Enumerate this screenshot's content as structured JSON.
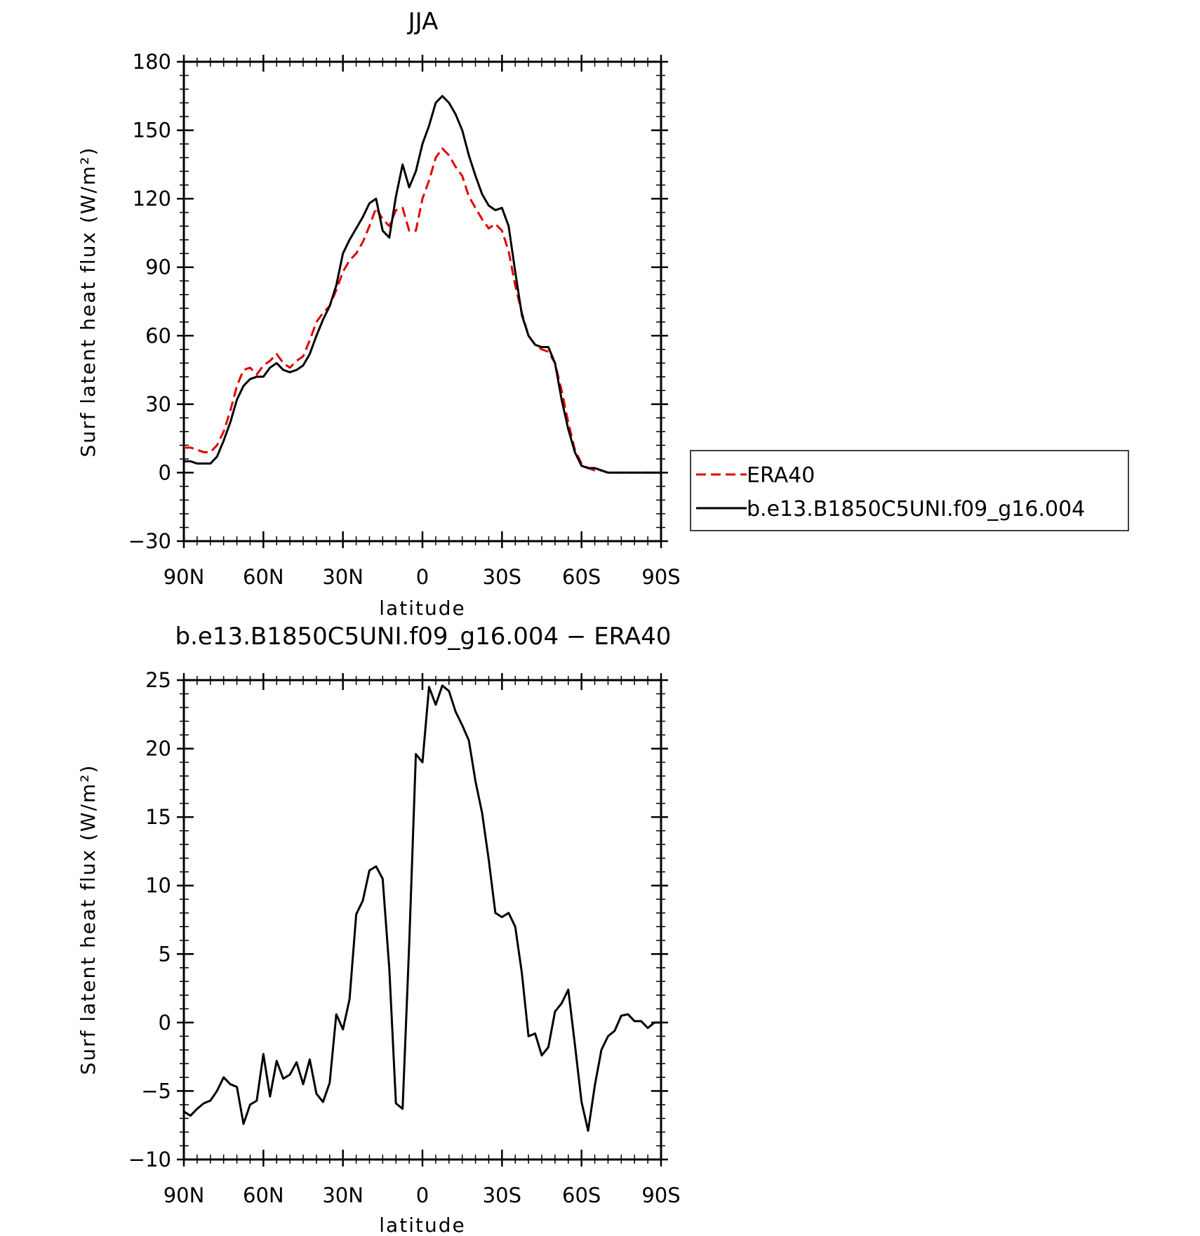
{
  "chart_data": [
    {
      "type": "line",
      "title": "JJA",
      "xlabel": "latitude",
      "ylabel": "Surf latent heat flux (W/m²)",
      "xlim": [
        90,
        -90
      ],
      "ylim": [
        -30,
        180
      ],
      "x_ticks": [
        90,
        60,
        30,
        0,
        -30,
        -60,
        -90
      ],
      "x_tick_labels": [
        "90N",
        "60N",
        "30N",
        "0",
        "30S",
        "60S",
        "90S"
      ],
      "y_ticks": [
        -30,
        0,
        30,
        60,
        90,
        120,
        150,
        180
      ],
      "y_tick_labels": [
        "−30",
        "0",
        "30",
        "60",
        "90",
        "120",
        "150",
        "180"
      ],
      "legend_position": "right",
      "series": [
        {
          "name": "ERA40",
          "color": "#e00000",
          "dash": "dashed",
          "x": [
            90,
            87.5,
            85,
            82.5,
            80,
            77.5,
            75,
            72.5,
            70,
            67.5,
            65,
            62.5,
            60,
            57.5,
            55,
            52.5,
            50,
            47.5,
            45,
            42.5,
            40,
            37.5,
            35,
            32.5,
            30,
            27.5,
            25,
            22.5,
            20,
            17.5,
            15,
            12.5,
            10,
            7.5,
            5,
            2.5,
            0,
            -2.5,
            -5,
            -7.5,
            -10,
            -12.5,
            -15,
            -17.5,
            -20,
            -22.5,
            -25,
            -27.5,
            -30,
            -32.5,
            -35,
            -37.5,
            -40,
            -42.5,
            -45,
            -47.5,
            -50,
            -52.5,
            -55,
            -57.5,
            -60,
            -62.5,
            -65,
            -67.5,
            -70,
            -72.5,
            -75,
            -77.5,
            -80,
            -82.5,
            -85,
            -87.5,
            -90
          ],
          "y": [
            11,
            11,
            10,
            9,
            9,
            12,
            18,
            27,
            38,
            45,
            46,
            43,
            47,
            49,
            52,
            48,
            46,
            49,
            51,
            58,
            66,
            70,
            73,
            80,
            88,
            93,
            96,
            101,
            108,
            116,
            111,
            108,
            115,
            116,
            106,
            106,
            120,
            128,
            138,
            142,
            139,
            134,
            130,
            121,
            116,
            111,
            107,
            109,
            106,
            97,
            82,
            70,
            60,
            56,
            54,
            53,
            48,
            36,
            22,
            10,
            4,
            2,
            1,
            1,
            0,
            0,
            0,
            0,
            0,
            0,
            0,
            0,
            0
          ]
        },
        {
          "name": "b.e13.B1850C5UNI.f09_g16.004",
          "color": "#000000",
          "dash": "solid",
          "x": [
            90,
            87.5,
            85,
            82.5,
            80,
            77.5,
            75,
            72.5,
            70,
            67.5,
            65,
            62.5,
            60,
            57.5,
            55,
            52.5,
            50,
            47.5,
            45,
            42.5,
            40,
            37.5,
            35,
            32.5,
            30,
            27.5,
            25,
            22.5,
            20,
            17.5,
            15,
            12.5,
            10,
            7.5,
            5,
            2.5,
            0,
            -2.5,
            -5,
            -7.5,
            -10,
            -12.5,
            -15,
            -17.5,
            -20,
            -22.5,
            -25,
            -27.5,
            -30,
            -32.5,
            -35,
            -37.5,
            -40,
            -42.5,
            -45,
            -47.5,
            -50,
            -52.5,
            -55,
            -57.5,
            -60,
            -62.5,
            -65,
            -67.5,
            -70,
            -72.5,
            -75,
            -77.5,
            -80,
            -82.5,
            -85,
            -87.5,
            -90
          ],
          "y": [
            5,
            5,
            4,
            4,
            4,
            7,
            14,
            22,
            32,
            38,
            41,
            42,
            42,
            46,
            48,
            45,
            44,
            45,
            47,
            52,
            60,
            67,
            73,
            82,
            96,
            102,
            107,
            112,
            118,
            120,
            106,
            103,
            121,
            135,
            125,
            132,
            144,
            152,
            162,
            165,
            162,
            157,
            150,
            139,
            130,
            122,
            117,
            115,
            116,
            108,
            88,
            69,
            60,
            56,
            55,
            55,
            48,
            32,
            19,
            9,
            3,
            2,
            2,
            1,
            0,
            0,
            0,
            0,
            0,
            0,
            0,
            0,
            0
          ]
        }
      ]
    },
    {
      "type": "line",
      "title": "b.e13.B1850C5UNI.f09_g16.004 − ERA40",
      "xlabel": "latitude",
      "ylabel": "Surf latent heat flux (W/m²)",
      "xlim": [
        90,
        -90
      ],
      "ylim": [
        -10,
        25
      ],
      "x_ticks": [
        90,
        60,
        30,
        0,
        -30,
        -60,
        -90
      ],
      "x_tick_labels": [
        "90N",
        "60N",
        "30N",
        "0",
        "30S",
        "60S",
        "90S"
      ],
      "y_ticks": [
        -10,
        -5,
        0,
        5,
        10,
        15,
        20,
        25
      ],
      "y_tick_labels": [
        "−10",
        "−5",
        "0",
        "5",
        "10",
        "15",
        "20",
        "25"
      ],
      "series": [
        {
          "color": "#000000",
          "dash": "solid",
          "x": [
            90,
            87.5,
            85,
            82.5,
            80,
            77.5,
            75,
            72.5,
            70,
            67.5,
            65,
            62.5,
            60,
            57.5,
            55,
            52.5,
            50,
            47.5,
            45,
            42.5,
            40,
            37.5,
            35,
            32.5,
            30,
            27.5,
            25,
            22.5,
            20,
            17.5,
            15,
            12.5,
            10,
            7.5,
            5,
            2.5,
            0,
            -2.5,
            -5,
            -7.5,
            -10,
            -12.5,
            -15,
            -17.5,
            -20,
            -22.5,
            -25,
            -27.5,
            -30,
            -32.5,
            -35,
            -37.5,
            -40,
            -42.5,
            -45,
            -47.5,
            -50,
            -52.5,
            -55,
            -57.5,
            -60,
            -62.5,
            -65,
            -67.5,
            -70,
            -72.5,
            -75,
            -77.5,
            -80,
            -82.5,
            -85,
            -87.5,
            -90
          ],
          "y": [
            -6.5,
            -6.8,
            -6.3,
            -5.9,
            -5.7,
            -5.0,
            -4.0,
            -4.5,
            -4.7,
            -7.4,
            -6.0,
            -5.7,
            -2.3,
            -5.4,
            -2.8,
            -4.1,
            -3.8,
            -2.9,
            -4.5,
            -2.7,
            -5.2,
            -5.8,
            -4.4,
            0.6,
            -0.5,
            1.7,
            7.9,
            8.9,
            11.1,
            11.4,
            10.5,
            3.9,
            -5.9,
            -6.3,
            5.7,
            19.6,
            19.0,
            24.5,
            23.2,
            24.6,
            24.2,
            22.7,
            21.7,
            20.6,
            17.6,
            15.3,
            11.9,
            8.0,
            7.7,
            8.0,
            7.0,
            3.6,
            -1.0,
            -0.8,
            -2.4,
            -1.8,
            0.8,
            1.4,
            2.4,
            -1.6,
            -5.8,
            -7.9,
            -4.6,
            -2.0,
            -1.0,
            -0.6,
            0.5,
            0.6,
            0.1,
            0.1,
            -0.4,
            0.0,
            0.0
          ]
        }
      ]
    }
  ]
}
